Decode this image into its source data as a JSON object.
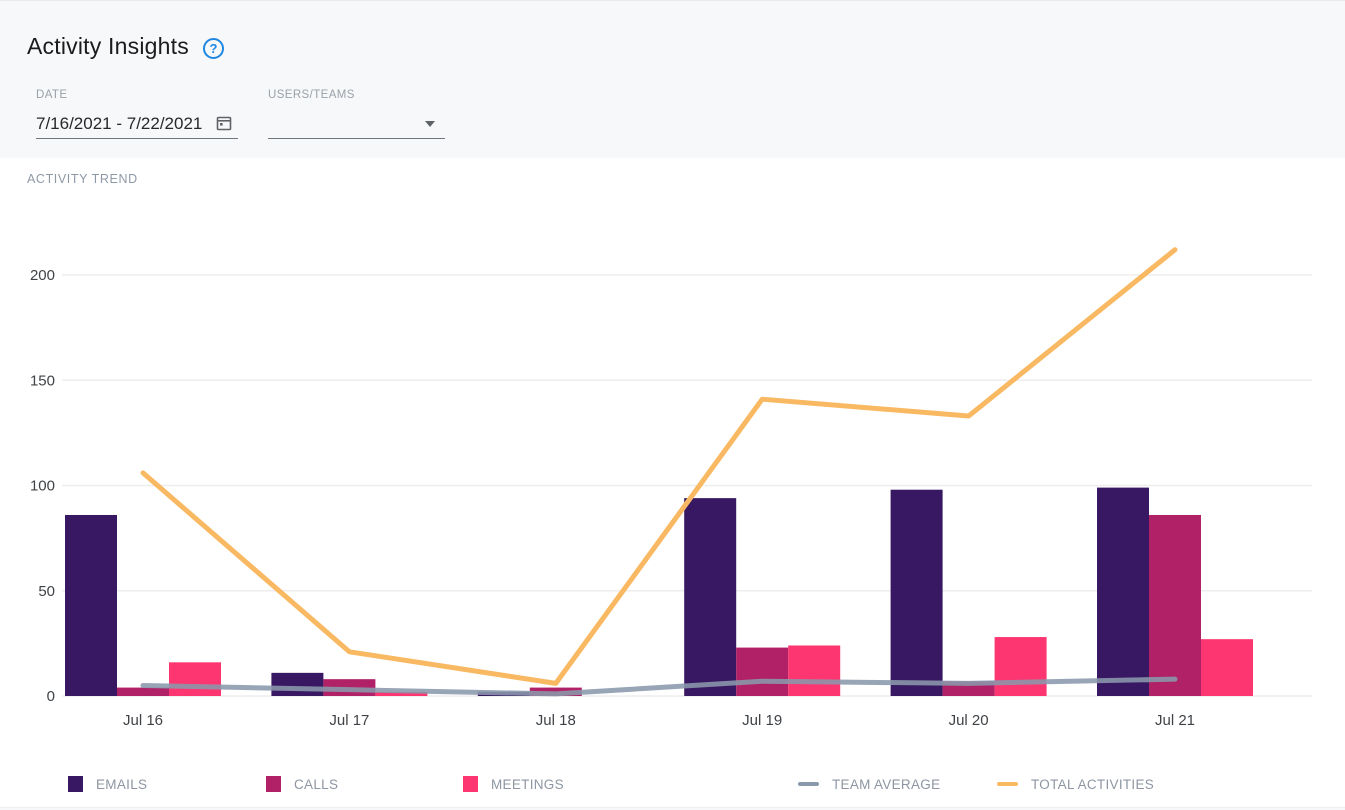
{
  "page": {
    "title": "Activity Insights",
    "help_glyph": "?",
    "help_color": "#1e87e2"
  },
  "filters": {
    "date": {
      "label": "DATE",
      "value": "7/16/2021 - 7/22/2021",
      "icon": "calendar-icon"
    },
    "users_teams": {
      "label": "USERS/TEAMS",
      "value": "",
      "icon": "chevron-down-icon"
    }
  },
  "chart": {
    "section_title": "ACTIVITY TREND"
  },
  "chart_data": {
    "type": "bar",
    "subtype": "grouped-bars-with-lines",
    "title": "ACTIVITY TREND",
    "xlabel": "",
    "ylabel": "",
    "categories": [
      "Jul 16",
      "Jul 17",
      "Jul 18",
      "Jul 19",
      "Jul 20",
      "Jul 21"
    ],
    "series": [
      {
        "name": "EMAILS",
        "kind": "bar",
        "color": "#381763",
        "values": [
          86,
          11,
          2,
          94,
          98,
          99
        ]
      },
      {
        "name": "CALLS",
        "kind": "bar",
        "color": "#b02168",
        "values": [
          4,
          8,
          4,
          23,
          7,
          86
        ]
      },
      {
        "name": "MEETINGS",
        "kind": "bar",
        "color": "#fd3570",
        "values": [
          16,
          2,
          0,
          24,
          28,
          27
        ]
      },
      {
        "name": "TEAM AVERAGE",
        "kind": "line",
        "color": "#8a99ac",
        "values": [
          5,
          3,
          1,
          7,
          6,
          8
        ]
      },
      {
        "name": "TOTAL ACTIVITIES",
        "kind": "line",
        "color": "#f9b862",
        "values": [
          106,
          21,
          6,
          141,
          133,
          212
        ]
      }
    ],
    "ylim": [
      0,
      200
    ],
    "yticks": [
      0,
      50,
      100,
      150,
      200
    ],
    "grid": true,
    "grid_color": "#ededee",
    "axis_text_color": "#3f4347",
    "legend_position": "bottom"
  }
}
